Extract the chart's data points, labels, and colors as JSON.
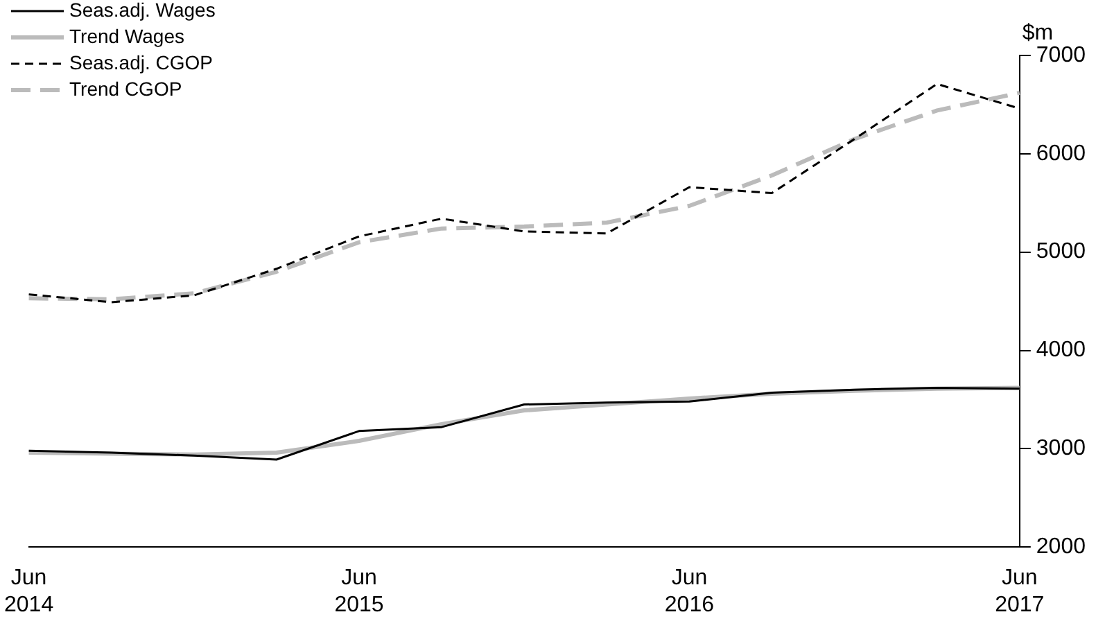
{
  "chart_data": {
    "type": "line",
    "ylabel": "$m",
    "categories": [
      "Jun 2014",
      null,
      null,
      null,
      "Jun 2015",
      null,
      null,
      null,
      "Jun 2016",
      null,
      null,
      null,
      "Jun 2017"
    ],
    "ylim": [
      2000,
      7000
    ],
    "yticks": [
      2000,
      3000,
      4000,
      5000,
      6000,
      7000
    ],
    "grid": false,
    "legend": "top left",
    "marker": "none",
    "series": [
      {
        "name": "Seas.adj. Wages",
        "color": "#000000",
        "line_style": "solid",
        "values": [
          2980,
          2960,
          2930,
          2890,
          3180,
          3220,
          3450,
          3470,
          3480,
          3570,
          3600,
          3620,
          3610
        ]
      },
      {
        "name": "Trend Wages",
        "color": "#bbbbbb",
        "line_style": "solid",
        "values": [
          2960,
          2950,
          2940,
          2960,
          3080,
          3250,
          3390,
          3450,
          3510,
          3560,
          3590,
          3610,
          3620
        ]
      },
      {
        "name": "Seas.adj. CGOP",
        "color": "#000000",
        "line_style": "dashed",
        "values": [
          4570,
          4490,
          4560,
          4830,
          5160,
          5340,
          5210,
          5190,
          5660,
          5600,
          6150,
          6710,
          6460
        ]
      },
      {
        "name": "Trend CGOP",
        "color": "#bbbbbb",
        "line_style": "dashed",
        "values": [
          4530,
          4520,
          4580,
          4800,
          5100,
          5240,
          5260,
          5300,
          5470,
          5780,
          6150,
          6440,
          6620
        ]
      }
    ]
  }
}
